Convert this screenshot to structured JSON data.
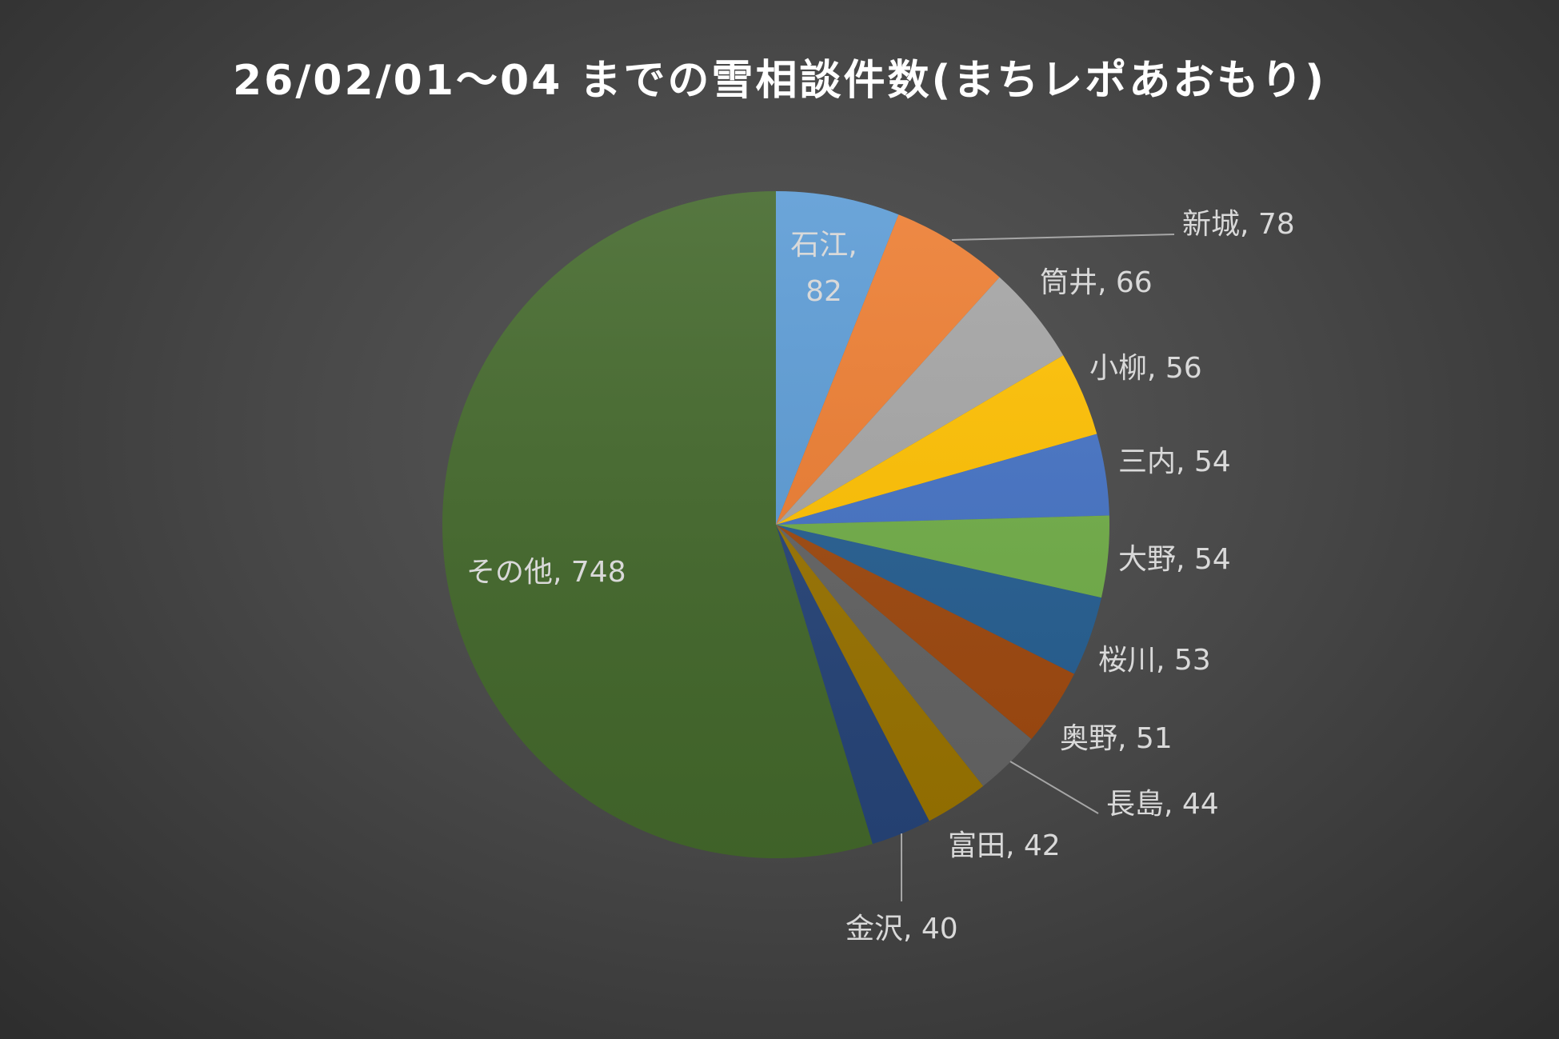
{
  "chart_data": {
    "type": "pie",
    "title": "26/02/01～04 までの雪相談件数(まちレポあおもり)",
    "slices": [
      {
        "label": "石江",
        "value": 82,
        "color": "#5b9bd5"
      },
      {
        "label": "新城",
        "value": 78,
        "color": "#ed7d31"
      },
      {
        "label": "筒井",
        "value": 66,
        "color": "#a5a5a5"
      },
      {
        "label": "小柳",
        "value": 56,
        "color": "#ffc000"
      },
      {
        "label": "三内",
        "value": 54,
        "color": "#4472c4"
      },
      {
        "label": "大野",
        "value": 54,
        "color": "#70ad47"
      },
      {
        "label": "桜川",
        "value": 53,
        "color": "#255e91"
      },
      {
        "label": "奥野",
        "value": 51,
        "color": "#9e480e"
      },
      {
        "label": "長島",
        "value": 44,
        "color": "#636363"
      },
      {
        "label": "富田",
        "value": 42,
        "color": "#997300"
      },
      {
        "label": "金沢",
        "value": 40,
        "color": "#264478"
      },
      {
        "label": "その他",
        "value": 748,
        "color": "#43682b"
      }
    ],
    "label_format": "{label}, {value}",
    "legend": "none",
    "start_angle": "12 o'clock",
    "direction": "clockwise",
    "background": "#404040"
  }
}
